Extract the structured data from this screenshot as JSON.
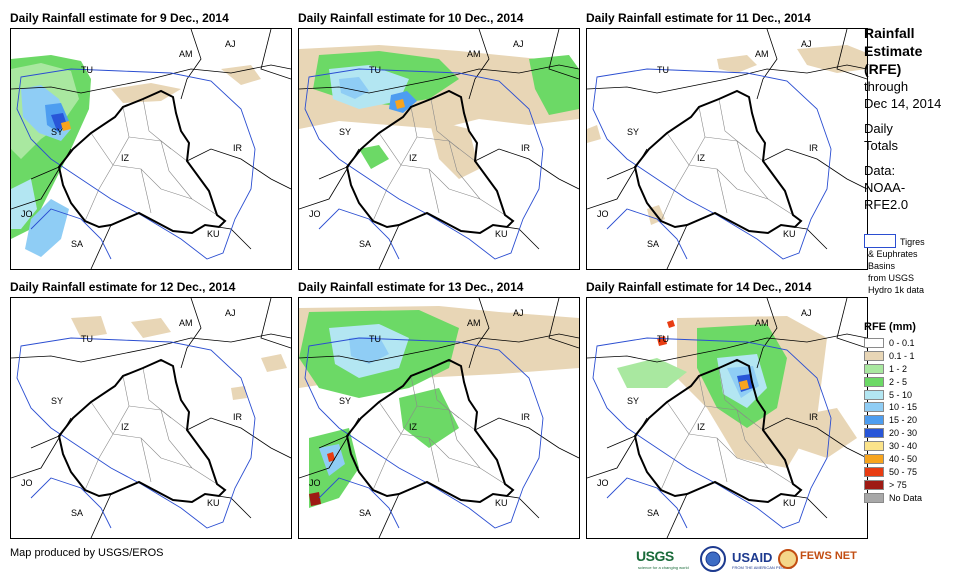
{
  "panels": [
    {
      "title": "Daily Rainfall estimate for 9 Dec., 2014",
      "labels": [
        "AM",
        "AJ",
        "TU",
        "SY",
        "IZ",
        "IR",
        "JO",
        "SA",
        "KU"
      ]
    },
    {
      "title": "Daily Rainfall estimate for 10 Dec., 2014",
      "labels": [
        "AM",
        "AJ",
        "TU",
        "SY",
        "IZ",
        "IR",
        "JO",
        "SA",
        "KU"
      ]
    },
    {
      "title": "Daily Rainfall estimate for 11 Dec., 2014",
      "labels": [
        "AM",
        "AJ",
        "TU",
        "SY",
        "IZ",
        "IR",
        "JO",
        "SA",
        "KU"
      ]
    },
    {
      "title": "Daily Rainfall estimate for 12 Dec., 2014",
      "labels": [
        "AM",
        "AJ",
        "TU",
        "SY",
        "IZ",
        "IR",
        "JO",
        "SA",
        "KU"
      ]
    },
    {
      "title": "Daily Rainfall estimate for 13 Dec., 2014",
      "labels": [
        "AM",
        "AJ",
        "TU",
        "SY",
        "IZ",
        "IR",
        "JO",
        "SA",
        "KU"
      ]
    },
    {
      "title": "Daily Rainfall estimate for 14 Dec., 2014",
      "labels": [
        "AM",
        "AJ",
        "TU",
        "SY",
        "IZ",
        "IR",
        "JO",
        "SA",
        "KU"
      ]
    }
  ],
  "sidebar": {
    "title_lines": [
      "Rainfall",
      "Estimate",
      "(RFE)"
    ],
    "through": "through",
    "end_date": "Dec 14, 2014",
    "totals_1": "Daily",
    "totals_2": "Totals",
    "data_1": "Data:",
    "data_2": "NOAA-",
    "data_3": "RFE2.0"
  },
  "basin_key": {
    "line1": "Tigres",
    "line2": "& Euphrates",
    "line3": "Basins",
    "line4": "from USGS",
    "line5": "Hydro 1k data"
  },
  "legend": {
    "title": "RFE (mm)",
    "items": [
      {
        "label": "0 - 0.1",
        "color": "#ffffff"
      },
      {
        "label": "0.1 - 1",
        "color": "#e8d6b6"
      },
      {
        "label": "1 - 2",
        "color": "#a9e8a0"
      },
      {
        "label": "2 - 5",
        "color": "#6cd966"
      },
      {
        "label": "5 - 10",
        "color": "#b3e6f2"
      },
      {
        "label": "10 - 15",
        "color": "#8fcdf5"
      },
      {
        "label": "15 - 20",
        "color": "#4d9df0"
      },
      {
        "label": "20 - 30",
        "color": "#2856d8"
      },
      {
        "label": "30 - 40",
        "color": "#fbe38a"
      },
      {
        "label": "40 - 50",
        "color": "#f7a41e"
      },
      {
        "label": "50 - 75",
        "color": "#e83c12"
      },
      {
        "label": "> 75",
        "color": "#9e1a14"
      },
      {
        "label": "No Data",
        "color": "#a8a8a8"
      }
    ]
  },
  "footer": "Map produced by USGS/EROS",
  "logos": {
    "usgs": "USGS",
    "usgs_tag": "science for a changing world",
    "usaid": "USAID",
    "usaid_tag": "FROM THE AMERICAN PEOPLE",
    "fews": "FEWS NET"
  },
  "colors": {
    "basin": "#2b4ed1",
    "border": "#000000",
    "province": "#8a8a8a"
  }
}
